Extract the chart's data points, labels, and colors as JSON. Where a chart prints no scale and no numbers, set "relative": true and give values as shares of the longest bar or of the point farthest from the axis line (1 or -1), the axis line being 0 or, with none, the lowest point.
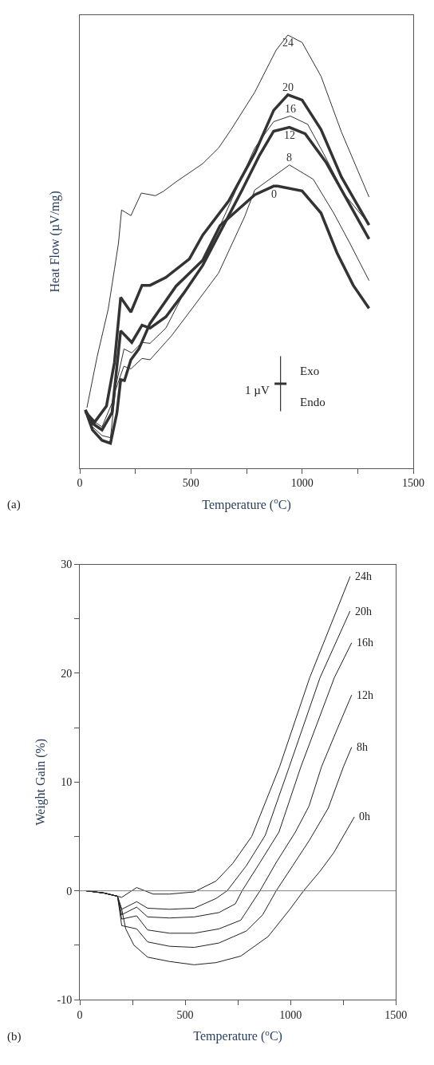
{
  "chart_data": [
    {
      "type": "line",
      "relative": true,
      "xlabel": "Temperature ($^{o}$C)",
      "ylabel": "Heat Flow (µV/mg)",
      "xlim": [
        0,
        1500
      ],
      "xticks": [
        0,
        {
          "value": 250,
          "label": null
        },
        500,
        {
          "value": 750,
          "label": null
        },
        1000,
        {
          "value": 1250,
          "label": null
        },
        1500
      ],
      "grid": false,
      "legend": false,
      "marker": "none",
      "line_style": "solid",
      "annotations": [
        "(a)",
        "1 µV",
        "Exo",
        "Endo"
      ],
      "series": [
        {
          "name": "0",
          "color": "#333333",
          "x": [
            25,
            57,
            100,
            138,
            167,
            184,
            201,
            230,
            266,
            316,
            433,
            553,
            631,
            787,
            872,
            890,
            1000,
            1085,
            1157,
            1230,
            1301
          ],
          "values": [
            0.134,
            0.088,
            0.064,
            0.057,
            0.127,
            0.204,
            0.202,
            0.25,
            0.275,
            0.334,
            0.42,
            0.48,
            0.56,
            0.631,
            0.651,
            0.651,
            0.64,
            0.589,
            0.497,
            0.422,
            0.369
          ]
        },
        {
          "name": "8",
          "color": "#333333",
          "x": [
            25,
            57,
            100,
            138,
            161,
            198,
            230,
            280,
            316,
            412,
            493,
            624,
            741,
            787,
            943,
            1050,
            1142,
            1213,
            1301
          ],
          "values": [
            0.134,
            0.095,
            0.075,
            0.07,
            0.18,
            0.235,
            0.229,
            0.253,
            0.25,
            0.305,
            0.36,
            0.45,
            0.58,
            0.642,
            0.7,
            0.667,
            0.589,
            0.521,
            0.433
          ]
        },
        {
          "name": "12",
          "color": "#333333",
          "x": [
            25,
            57,
            100,
            145,
            184,
            234,
            280,
            316,
            387,
            468,
            553,
            730,
            809,
            872,
            943,
            1014,
            1109,
            1301
          ],
          "values": [
            0.134,
            0.103,
            0.088,
            0.128,
            0.317,
            0.29,
            0.33,
            0.323,
            0.349,
            0.404,
            0.468,
            0.642,
            0.723,
            0.778,
            0.787,
            0.772,
            0.705,
            0.529
          ]
        },
        {
          "name": "16",
          "color": "#333333",
          "x": [
            25,
            57,
            100,
            145,
            199,
            234,
            280,
            316,
            387,
            468,
            553,
            787,
            872,
            947,
            1025,
            1096,
            1192,
            1298
          ],
          "values": [
            0.134,
            0.11,
            0.095,
            0.15,
            0.275,
            0.266,
            0.29,
            0.288,
            0.323,
            0.404,
            0.47,
            0.739,
            0.8,
            0.813,
            0.794,
            0.727,
            0.631,
            0.565
          ]
        },
        {
          "name": "20",
          "color": "#333333",
          "x": [
            25,
            67,
            120,
            156,
            184,
            230,
            280,
            316,
            387,
            493,
            553,
            670,
            787,
            872,
            936,
            1000,
            1085,
            1177,
            1301
          ],
          "values": [
            0.13,
            0.106,
            0.143,
            0.244,
            0.394,
            0.36,
            0.422,
            0.422,
            0.44,
            0.483,
            0.538,
            0.617,
            0.727,
            0.826,
            0.862,
            0.85,
            0.782,
            0.672,
            0.561
          ]
        },
        {
          "name": "24",
          "color": "#333333",
          "x": [
            32,
            78,
            128,
            156,
            174,
            188,
            230,
            277,
            340,
            376,
            433,
            553,
            624,
            681,
            787,
            883,
            936,
            1000,
            1085,
            1177,
            1301
          ],
          "values": [
            0.139,
            0.257,
            0.367,
            0.459,
            0.519,
            0.596,
            0.583,
            0.635,
            0.629,
            0.639,
            0.661,
            0.703,
            0.739,
            0.782,
            0.868,
            0.965,
            1,
            0.983,
            0.905,
            0.776,
            0.626
          ]
        }
      ]
    },
    {
      "type": "line",
      "xlabel": "Temperature ($^{o}$C)",
      "ylabel": "Weight Gain (%)",
      "xlim": [
        0,
        1500
      ],
      "xticks": [
        0,
        {
          "value": 250,
          "label": null
        },
        500,
        {
          "value": 750,
          "label": null
        },
        1000,
        {
          "value": 1250,
          "label": null
        },
        1500
      ],
      "ylim": [
        -10,
        30
      ],
      "yticks": [
        -10,
        {
          "value": -5,
          "label": null
        },
        0,
        {
          "value": 5,
          "label": null
        },
        10,
        {
          "value": 15,
          "label": null
        },
        20,
        {
          "value": 25,
          "label": null
        },
        30
      ],
      "grid": false,
      "legend": false,
      "marker": "none",
      "line_style": "solid",
      "ref_lines": [
        {
          "axis": "y",
          "value": 0,
          "color": "#808080"
        }
      ],
      "annotations": [
        "(b)"
      ],
      "series": [
        {
          "name": "0h",
          "color": "#222222",
          "x": [
            30,
            114,
            179,
            199,
            218,
            257,
            322,
            426,
            543,
            647,
            764,
            894,
            997,
            1062,
            1140,
            1205,
            1303
          ],
          "values": [
            0,
            -0.2,
            -0.5,
            -1.7,
            -3.5,
            -5,
            -6.1,
            -6.5,
            -6.8,
            -6.6,
            -6,
            -4.2,
            -1.7,
            0,
            1.8,
            3.5,
            6.8
          ]
        },
        {
          "name": "8h",
          "color": "#222222",
          "x": [
            30,
            114,
            179,
            199,
            270,
            322,
            426,
            543,
            660,
            790,
            868,
            932,
            1010,
            1088,
            1179,
            1251,
            1290
          ],
          "values": [
            0,
            -0.2,
            -0.5,
            -3.2,
            -3.5,
            -4.7,
            -5.1,
            -5.2,
            -4.8,
            -3.7,
            -2.2,
            0,
            2.3,
            4.6,
            7.6,
            11.4,
            13.2
          ]
        },
        {
          "name": "12h",
          "color": "#222222",
          "x": [
            30,
            114,
            179,
            199,
            270,
            322,
            426,
            543,
            660,
            764,
            855,
            932,
            1023,
            1088,
            1147,
            1220,
            1290
          ],
          "values": [
            0,
            -0.2,
            -0.5,
            -2.6,
            -2.3,
            -3.6,
            -3.9,
            -3.9,
            -3.5,
            -2.7,
            0,
            2.6,
            5.4,
            7.8,
            11.4,
            14.8,
            18
          ]
        },
        {
          "name": "16h",
          "color": "#222222",
          "x": [
            30,
            114,
            179,
            199,
            270,
            322,
            426,
            543,
            660,
            738,
            770,
            855,
            945,
            1049,
            1208,
            1290
          ],
          "values": [
            0,
            -0.2,
            -0.5,
            -2.2,
            -1.5,
            -2.4,
            -2.5,
            -2.4,
            -2,
            -1.2,
            0,
            2.6,
            5.4,
            11.4,
            19.6,
            22.8
          ]
        },
        {
          "name": "20h",
          "color": "#222222",
          "x": [
            30,
            114,
            179,
            199,
            270,
            322,
            426,
            543,
            647,
            699,
            790,
            880,
            994,
            1140,
            1282
          ],
          "values": [
            0,
            -0.2,
            -0.5,
            -1.7,
            -1,
            -1.6,
            -1.7,
            -1.6,
            -0.7,
            0,
            2.3,
            5.1,
            11.4,
            19.6,
            25.7
          ]
        },
        {
          "name": "24h",
          "color": "#222222",
          "x": [
            30,
            114,
            179,
            199,
            270,
            348,
            426,
            543,
            647,
            725,
            816,
            948,
            1091,
            1283
          ],
          "values": [
            0,
            -0.2,
            -0.5,
            -0.6,
            0.3,
            -0.3,
            -0.3,
            -0.1,
            0.9,
            2.5,
            5,
            11.4,
            19.6,
            28.9
          ]
        }
      ]
    }
  ]
}
